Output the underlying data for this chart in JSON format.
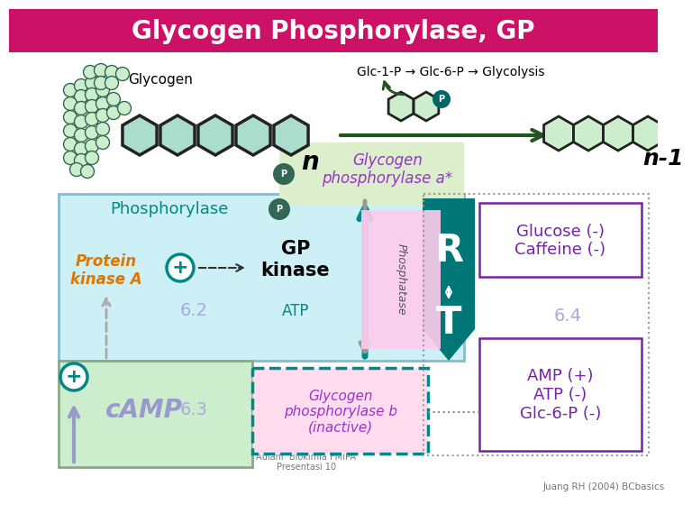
{
  "title": "Glycogen Phosphorylase, GP",
  "title_bg": "#cc1166",
  "title_color": "white",
  "bg_color": "white",
  "top_text": "Glc-1-P → Glc-6-P → Glycolysis",
  "glycogen_label": "Glycogen",
  "n_label": "n",
  "n1_label": "n-1",
  "gp_a_label": "Glycogen\nphosphorylase a*",
  "gp_b_label": "Glycogen\nphosphorylase b\n(inactive)",
  "protein_kinase": "Protein\nkinase A",
  "gp_kinase": "GP\nkinase",
  "phosphorylase": "Phosphorylase",
  "phosphatase": "Phosphatase",
  "atp_label": "ATP",
  "camp_label": "cAMP",
  "glucose_caffeine": "Glucose (-)\nCaffeine (-)",
  "amp_atp_glc": "AMP (+)\nATP (-)\nGlc-6-P (-)",
  "num_62": "6.2",
  "num_63": "6.3",
  "num_64": "6.4",
  "r_label": "R",
  "t_label": "T",
  "hex_color_light": "#cceecc",
  "hex_color_chain": "#aaddcc",
  "hex_edge_chain": "#222222",
  "hex_edge_light": "#336655",
  "phospho_color": "#336655",
  "gp_a_bg": "#ddeecc",
  "gp_a_text": "#9933cc",
  "blue_box_bg": "#ccf0f5",
  "blue_box_edge": "#88bbcc",
  "green_box_bg": "#cceecc",
  "green_box_edge": "#88aa88",
  "arrow_green": "#225522",
  "arrow_teal": "#008888",
  "protein_kinase_color": "#dd7700",
  "camp_color": "#9999cc",
  "number_color": "#aaaadd",
  "purple_color": "#7722aa",
  "r_t_bg": "#007777",
  "pink_bg": "#ffccee",
  "gpb_bg": "#ffddee",
  "gpb_border": "#008888",
  "dashed_box_color": "#999999",
  "bottom_text_color": "#777777"
}
